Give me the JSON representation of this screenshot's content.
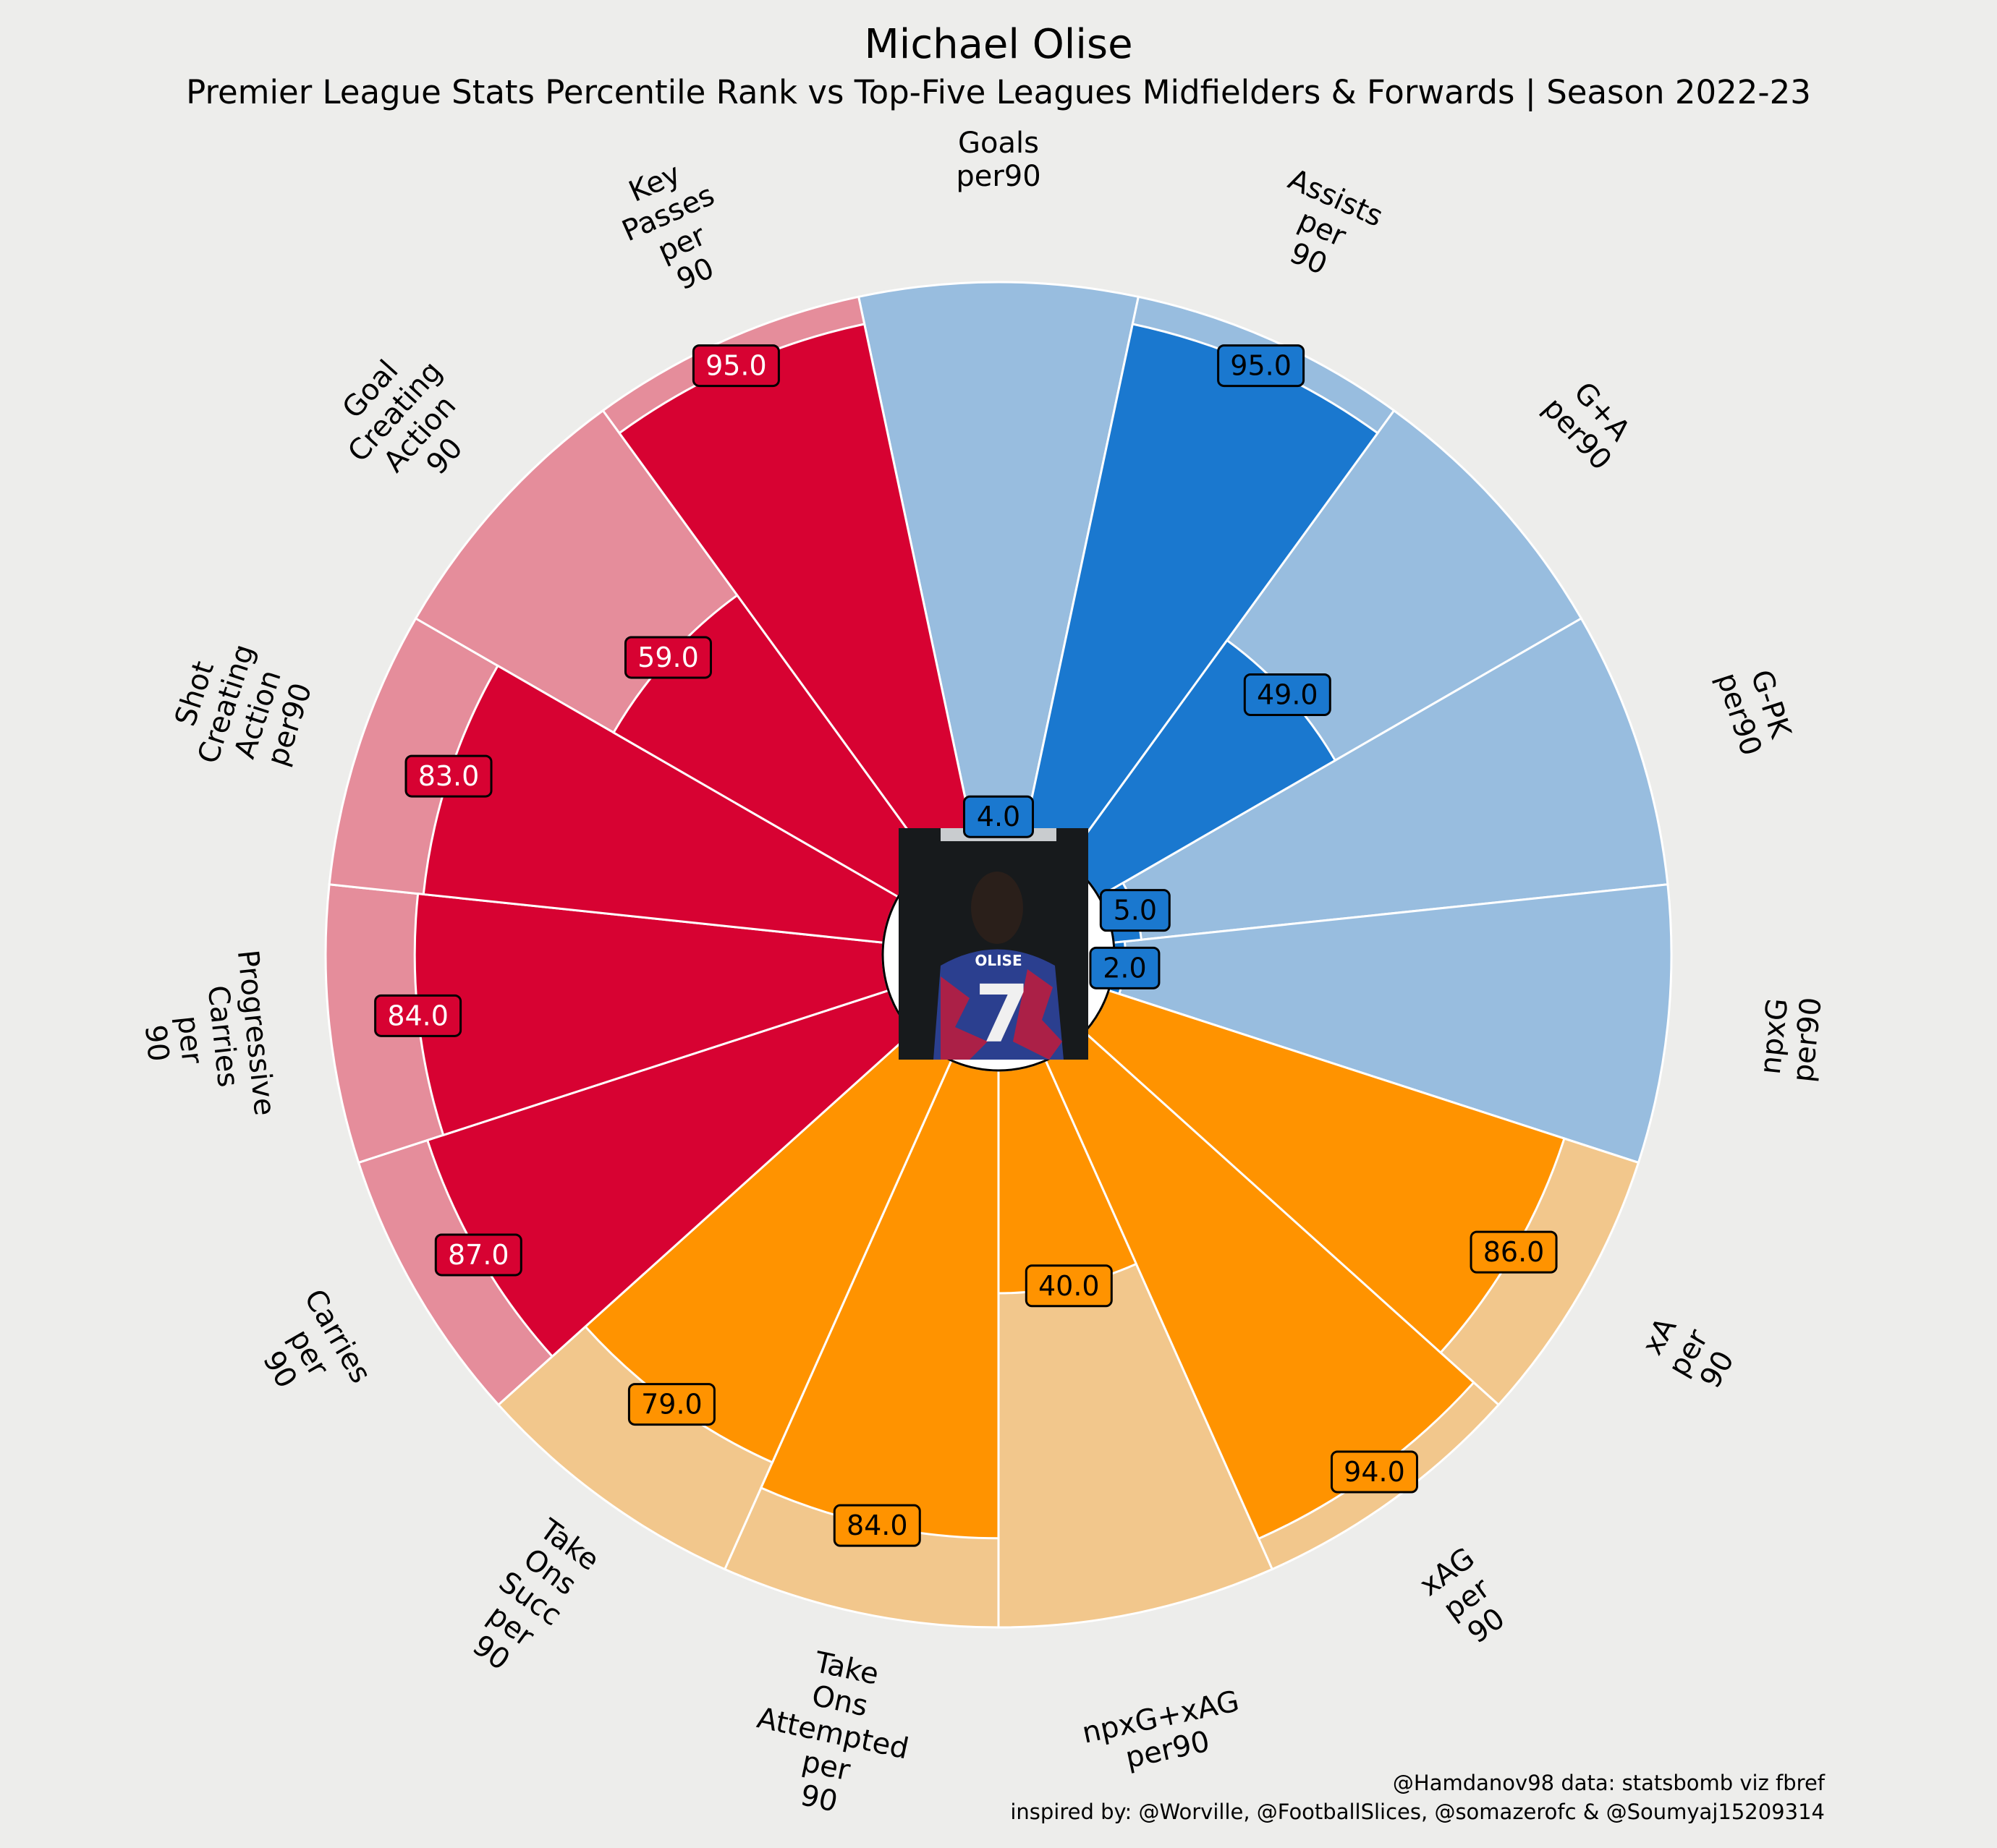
{
  "title": "Michael Olise",
  "subtitle": "Premier League Stats Percentile Rank vs Top-Five Leagues Midfielders & Forwards | Season 2022-23",
  "credits": [
    "@Hamdanov98 data: statsbomb viz fbref",
    "inspired by: @Worville, @FootballSlices, @somazerofc & @Soumyaj15209314"
  ],
  "player_photo": {
    "description_icon": "player-photo",
    "shirt_name": "OLISE",
    "shirt_number": "7"
  },
  "colors": {
    "background": "#ededeb",
    "attacking_fill": "#1a78cf",
    "attacking_bg": "#98bddf",
    "possession_fill": "#ff9300",
    "possession_bg": "#f2c78c",
    "creation_fill": "#d70232",
    "creation_bg": "#e58d9b"
  },
  "chart_data": {
    "type": "pizza",
    "max_value": 100,
    "slices": [
      {
        "label": "Goals\nper90",
        "value": 4.0,
        "group": "attacking"
      },
      {
        "label": "Assists\nper\n90",
        "value": 95.0,
        "group": "attacking"
      },
      {
        "label": "G+A\nper90",
        "value": 49.0,
        "group": "attacking"
      },
      {
        "label": "G-PK\nper90",
        "value": 5.0,
        "group": "attacking"
      },
      {
        "label": "npxG\nper90",
        "value": 2.0,
        "group": "attacking"
      },
      {
        "label": "xA\nper\n90",
        "value": 86.0,
        "group": "possession"
      },
      {
        "label": "xAG\nper\n90",
        "value": 94.0,
        "group": "possession"
      },
      {
        "label": "npxG+xAG\nper90",
        "value": 40.0,
        "group": "possession"
      },
      {
        "label": "Take\nOns\nAttempted\nper\n90",
        "value": 84.0,
        "group": "possession"
      },
      {
        "label": "Take\nOns\nSucc\nper\n90",
        "value": 79.0,
        "group": "possession"
      },
      {
        "label": "Carries\nper\n90",
        "value": 87.0,
        "group": "creation"
      },
      {
        "label": "Progressive\nCarries\nper\n90",
        "value": 84.0,
        "group": "creation"
      },
      {
        "label": "Shot\nCreating\nAction\nper90",
        "value": 83.0,
        "group": "creation"
      },
      {
        "label": "Goal\nCreating\nAction\n90",
        "value": 59.0,
        "group": "creation"
      },
      {
        "label": "Key\nPasses\nper\n90",
        "value": 95.0,
        "group": "creation"
      }
    ]
  }
}
